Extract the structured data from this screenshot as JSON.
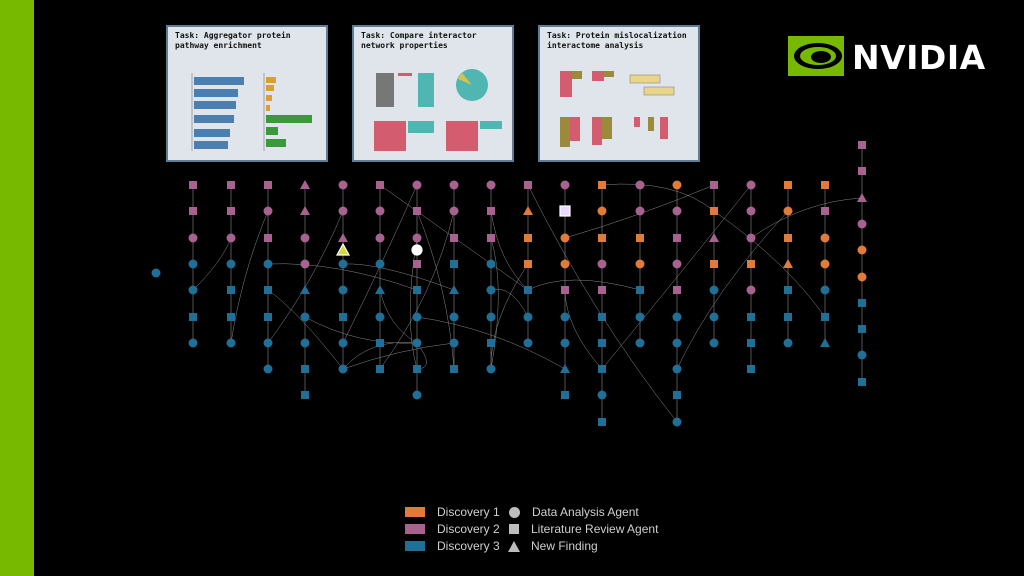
{
  "brand": {
    "name": "NVIDIA"
  },
  "colors": {
    "brand_green": "#76b900",
    "discovery_1": "#e07b39",
    "discovery_2": "#a7628f",
    "discovery_3": "#1f6f97",
    "new_finding_highlight": "#d4d93a",
    "legend_shape": "#bdbdbd"
  },
  "cards": [
    {
      "title": "Task: Aggregator protein pathway enrichment"
    },
    {
      "title": "Task: Compare interactor network properties"
    },
    {
      "title": "Task: Protein mislocalization interactome analysis"
    }
  ],
  "legend": {
    "colors": [
      {
        "label": "Discovery 1"
      },
      {
        "label": "Discovery 2"
      },
      {
        "label": "Discovery 3"
      }
    ],
    "shapes": [
      {
        "label": "Data Analysis Agent",
        "icon": "circle-icon"
      },
      {
        "label": "Literature Review Agent",
        "icon": "square-icon"
      },
      {
        "label": "New Finding",
        "icon": "triangle-icon"
      }
    ]
  }
}
